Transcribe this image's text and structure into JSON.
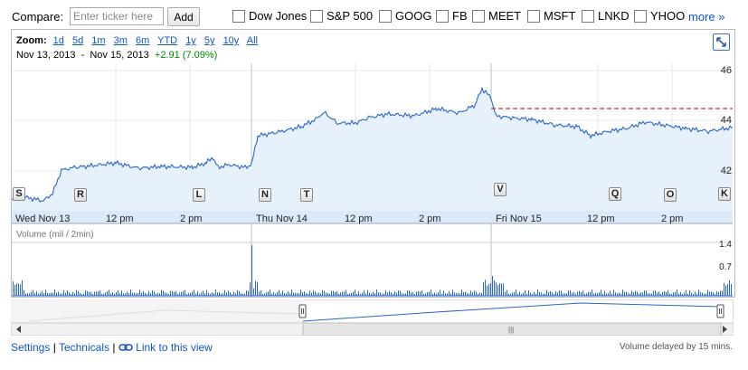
{
  "compare": {
    "label": "Compare:",
    "input_placeholder": "Enter ticker here",
    "add_label": "Add",
    "tickers": [
      "Dow Jones",
      "S&P 500",
      "GOOG",
      "FB",
      "MEET",
      "MSFT",
      "LNKD",
      "YHOO"
    ],
    "more_label": "more »"
  },
  "zoom": {
    "label": "Zoom:",
    "options": [
      "1d",
      "5d",
      "1m",
      "3m",
      "6m",
      "YTD",
      "1y",
      "5y",
      "10y",
      "All"
    ]
  },
  "range": {
    "start": "Nov 13, 2013",
    "separator": "-",
    "end": "Nov 15, 2013",
    "change": "+2.91 (7.09%)"
  },
  "chart": {
    "price_ticks": [
      "46",
      "44",
      "42"
    ],
    "x_labels": [
      "Wed Nov 13",
      "12 pm",
      "2 pm",
      "Thu Nov 14",
      "12 pm",
      "2 pm",
      "Fri Nov 15",
      "12 pm",
      "2 pm"
    ],
    "volume_label": "Volume (mil / 2min)",
    "volume_ticks": [
      "1.4",
      "0.7"
    ],
    "flags": [
      "S",
      "R",
      "L",
      "N",
      "T",
      "V",
      "Q",
      "O",
      "K"
    ],
    "colors": {
      "line": "#2a66c7",
      "fill": "#e6f1fb",
      "prev_close": "#c0392b",
      "grid": "#dde3ea"
    }
  },
  "footer": {
    "settings": "Settings",
    "sep": "|",
    "technicals": "Technicals",
    "link_icon": "chain-link-icon",
    "link_view": "Link to this view",
    "delay_note": "Volume delayed by 15 mins."
  }
}
